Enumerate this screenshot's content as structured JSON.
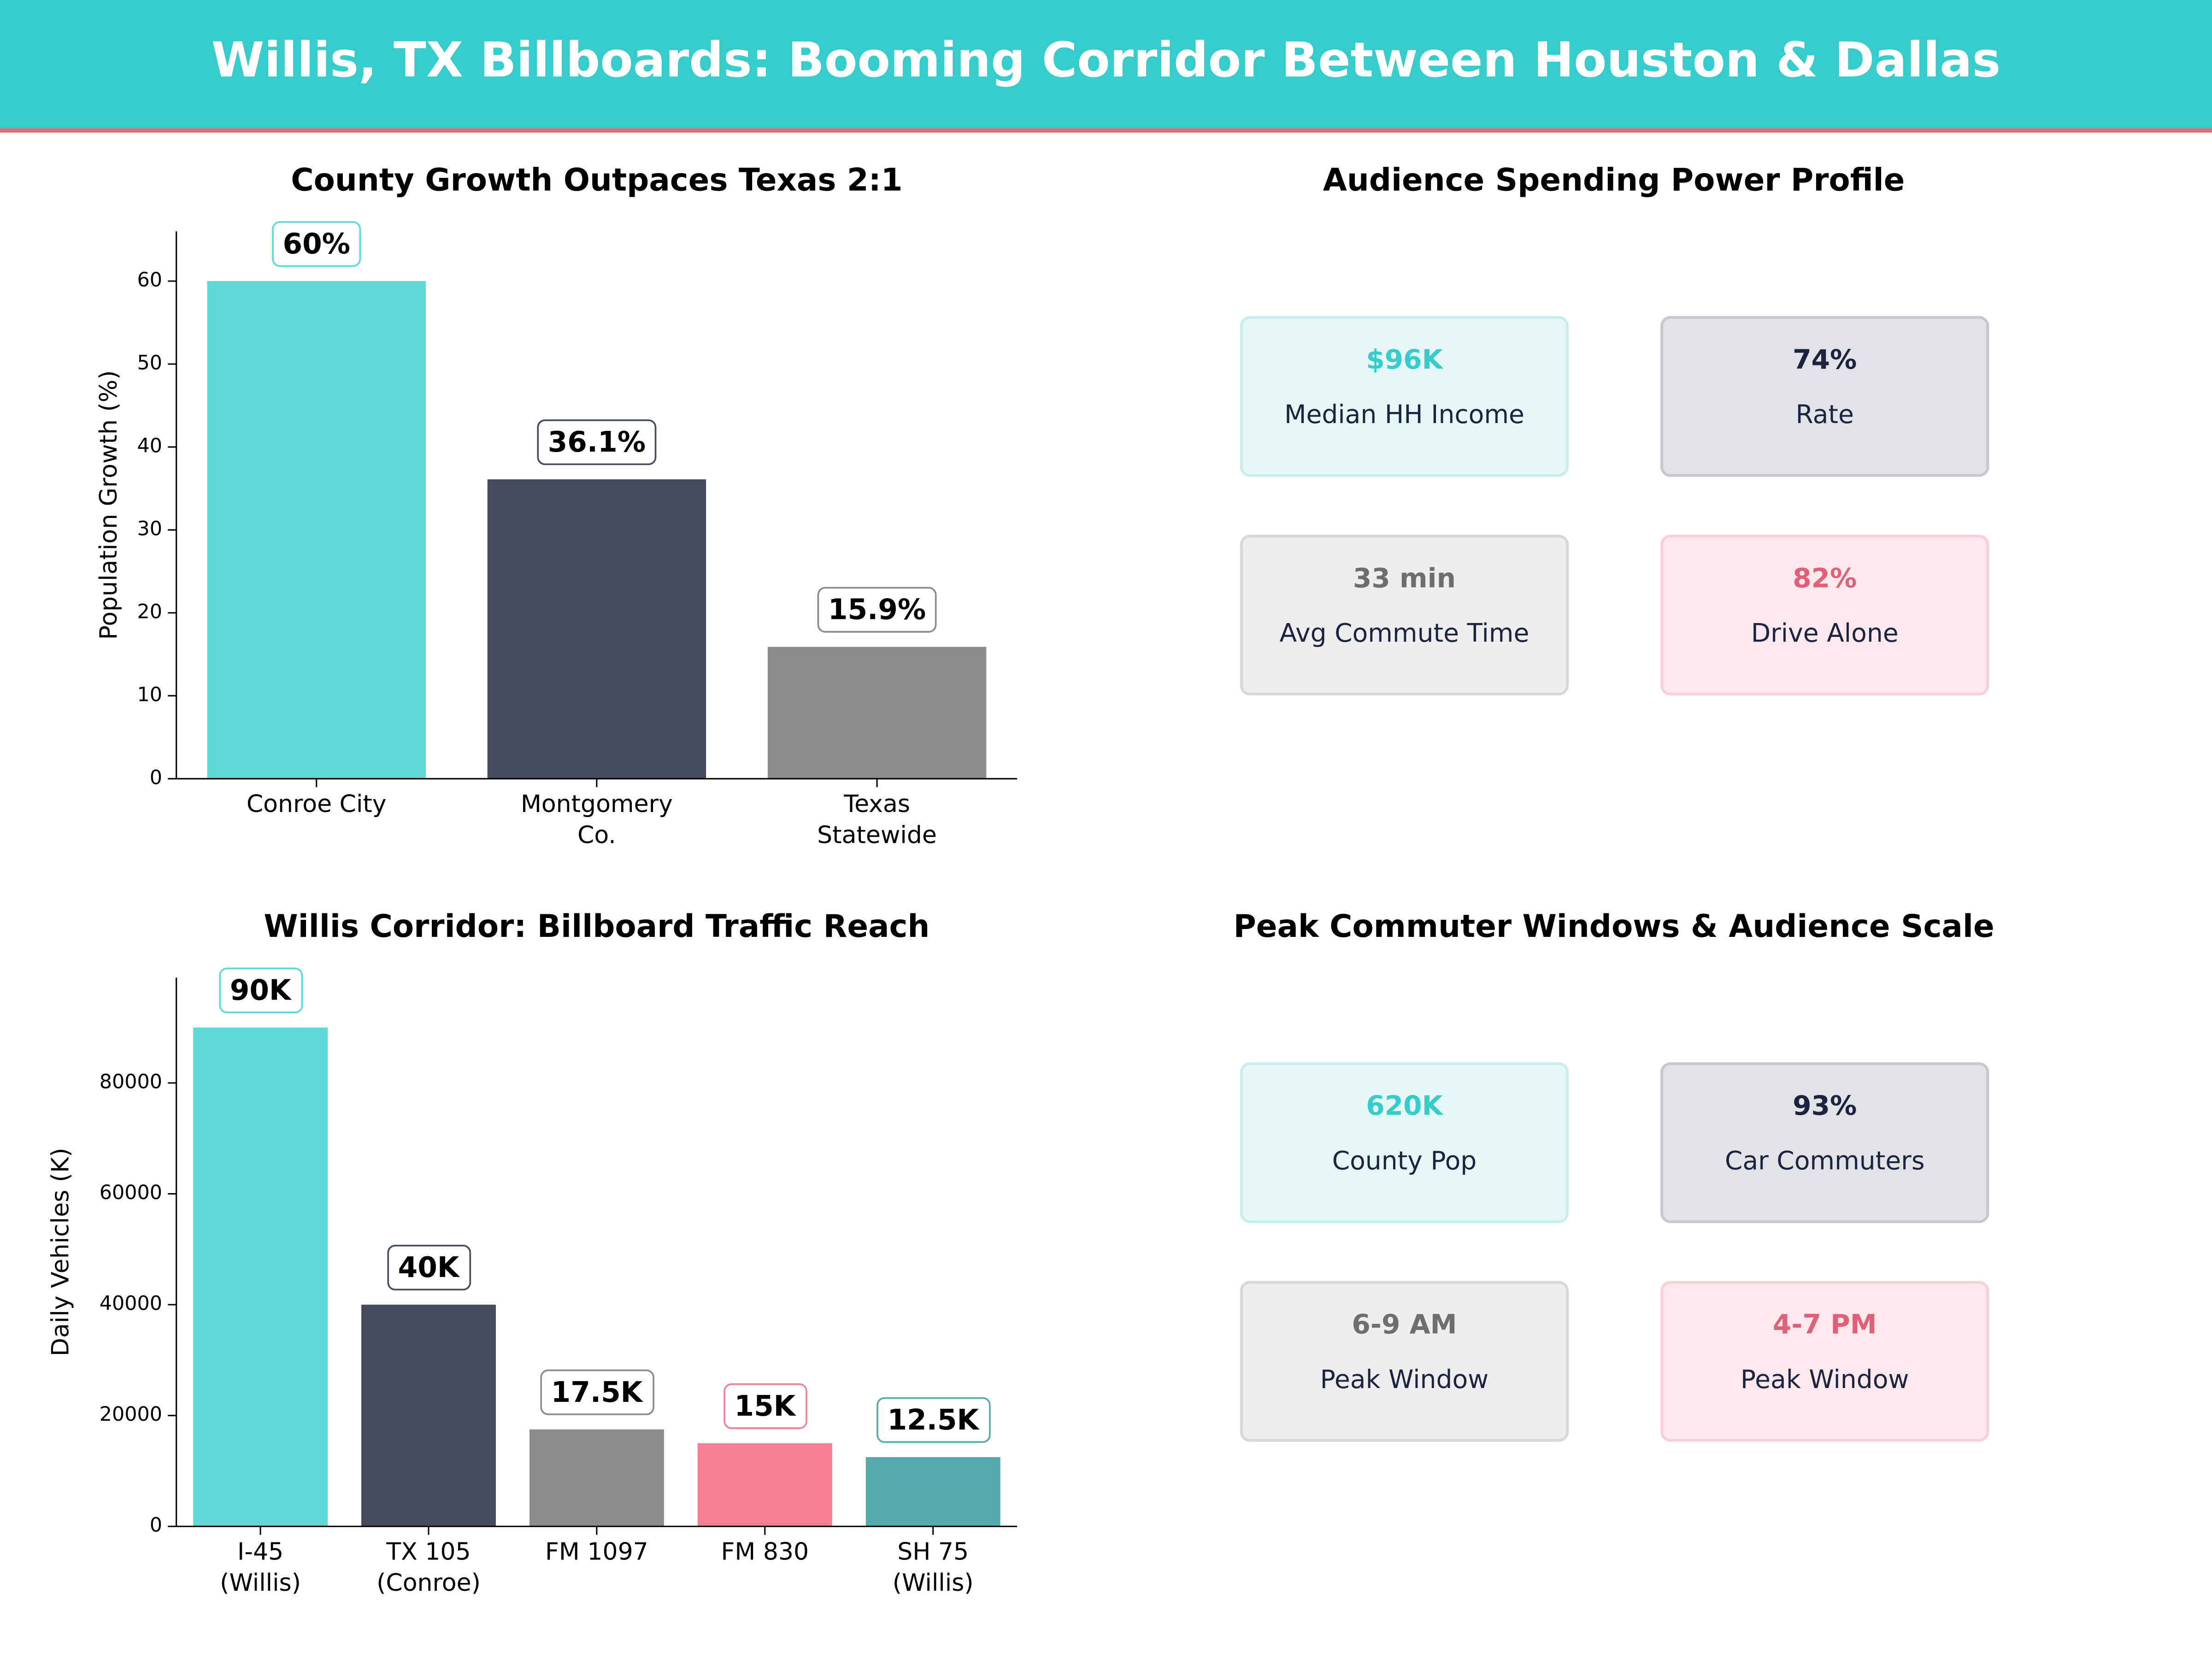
{
  "header": {
    "title": "Willis, TX Billboards: Booming Corridor Between Houston & Dallas"
  },
  "chart_data": [
    {
      "type": "bar",
      "title": "County Growth Outpaces Texas 2:1",
      "ylabel": "Population Growth (%)",
      "categories": [
        "Conroe City",
        "Montgomery\nCo.",
        "Texas\nStatewide"
      ],
      "values": [
        60,
        36.1,
        15.9
      ],
      "value_labels": [
        "60%",
        "36.1%",
        "15.9%"
      ],
      "colors": [
        "#5fd8d6",
        "#464a5f",
        "#8b8b8b"
      ],
      "ylim": [
        0,
        66
      ],
      "yticks": [
        0,
        10,
        20,
        30,
        40,
        50,
        60
      ]
    },
    {
      "type": "bar",
      "title": "Willis Corridor: Billboard Traffic Reach",
      "ylabel": "Daily Vehicles (K)",
      "categories": [
        "I-45\n(Willis)",
        "TX 105\n(Conroe)",
        "FM 1097",
        "FM 830",
        "SH 75\n(Willis)"
      ],
      "values": [
        90000,
        40000,
        17500,
        15000,
        12500
      ],
      "value_labels": [
        "90K",
        "40K",
        "17.5K",
        "15K",
        "12.5K"
      ],
      "colors": [
        "#5fd8d6",
        "#464a5f",
        "#8b8b8b",
        "#f67f93",
        "#55abab"
      ],
      "ylim": [
        0,
        99000
      ],
      "yticks": [
        0,
        20000,
        40000,
        60000,
        80000
      ]
    }
  ],
  "panels": [
    {
      "title": "Audience Spending Power Profile",
      "cards": [
        {
          "value": "$96K",
          "label": "Median HH Income"
        },
        {
          "value": "74%",
          "label": "Rate"
        },
        {
          "value": "33 min",
          "label": "Avg Commute Time"
        },
        {
          "value": "82%",
          "label": "Drive Alone"
        }
      ]
    },
    {
      "title": "Peak Commuter Windows & Audience Scale",
      "cards": [
        {
          "value": "620K",
          "label": "County Pop"
        },
        {
          "value": "93%",
          "label": "Car Commuters"
        },
        {
          "value": "6-9 AM",
          "label": "Peak Window"
        },
        {
          "value": "4-7 PM",
          "label": "Peak Window"
        }
      ]
    }
  ]
}
